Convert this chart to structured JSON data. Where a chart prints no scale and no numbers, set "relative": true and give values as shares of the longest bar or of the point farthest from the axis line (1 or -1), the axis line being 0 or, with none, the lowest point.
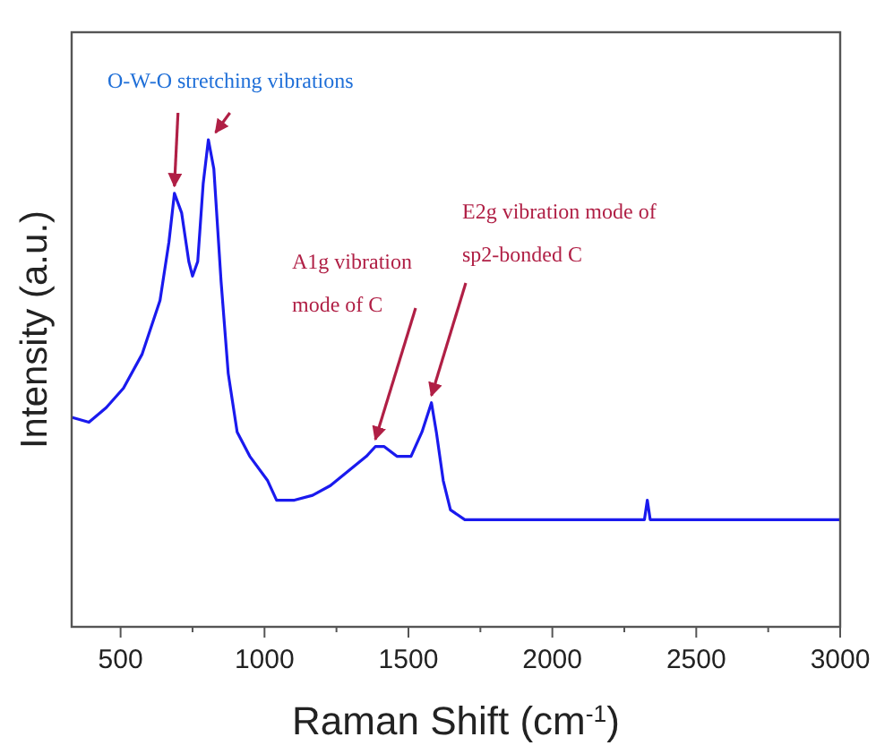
{
  "chart_data": {
    "type": "line",
    "xlabel": "Raman Shift (cm$^{-1}$)",
    "ylabel": "Intensity (a.u.)",
    "relative": true,
    "xlim": [
      330,
      3000
    ],
    "xticks": [
      500,
      {
        "value": 750,
        "label": null
      },
      1000,
      {
        "value": 1250,
        "label": null
      },
      1500,
      {
        "value": 1750,
        "label": null
      },
      2000,
      {
        "value": 2250,
        "label": null
      },
      2500,
      {
        "value": 2750,
        "label": null
      },
      3000
    ],
    "grid": false,
    "marker": "none",
    "line_style": "solid",
    "series": [
      {
        "color": "#1a1aee",
        "x": [
          330,
          390,
          450,
          510,
          575,
          637,
          668,
          687,
          712,
          737,
          750,
          768,
          787,
          805,
          824,
          849,
          874,
          905,
          949,
          1011,
          1042,
          1104,
          1167,
          1229,
          1291,
          1354,
          1385,
          1416,
          1460,
          1509,
          1547,
          1580,
          1597,
          1621,
          1646,
          1696,
          1800,
          2000,
          2200,
          2320,
          2330,
          2340,
          2500,
          2800,
          3000
        ],
        "values": [
          0.43,
          0.42,
          0.45,
          0.49,
          0.56,
          0.67,
          0.79,
          0.89,
          0.85,
          0.75,
          0.72,
          0.75,
          0.91,
          1.0,
          0.94,
          0.71,
          0.52,
          0.4,
          0.35,
          0.3,
          0.26,
          0.26,
          0.27,
          0.29,
          0.32,
          0.35,
          0.37,
          0.37,
          0.35,
          0.35,
          0.4,
          0.46,
          0.4,
          0.3,
          0.24,
          0.22,
          0.22,
          0.22,
          0.22,
          0.22,
          0.26,
          0.22,
          0.22,
          0.22,
          0.22
        ]
      }
    ],
    "annotations": [
      "O-W-O stretching vibrations",
      {
        "text": "A1g vibration mode of C",
        "x": 1385,
        "y": 0.37
      },
      {
        "text": "E2g vibration mode of sp2-bonded C",
        "x": 1580,
        "y": 0.46
      }
    ]
  }
}
